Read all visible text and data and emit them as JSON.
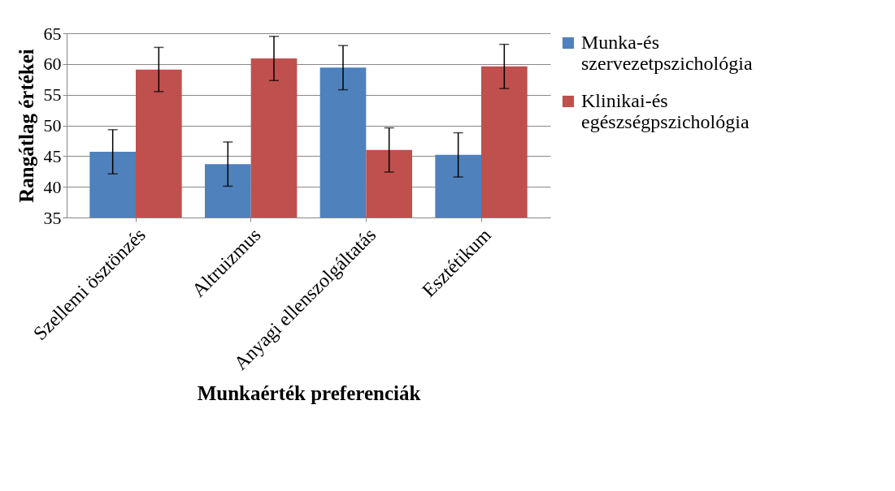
{
  "chart_data": {
    "type": "bar",
    "xlabel": "Munkaérték preferenciák",
    "ylabel": "Rangátlag értékei",
    "categories": [
      "Szellemi ösztönzés",
      "Altruizmus",
      "Anyagi ellenszolgáltatás",
      "Esztétikum"
    ],
    "series": [
      {
        "name": "Munka-és szervezetpszichológia",
        "color": "#4f81bd",
        "values": [
          45.7,
          43.7,
          59.4,
          45.2
        ],
        "errors": [
          3.6,
          3.6,
          3.6,
          3.6
        ]
      },
      {
        "name": "Klinikai-és egészségpszichológia",
        "color": "#c0504d",
        "values": [
          59.1,
          60.9,
          46.0,
          59.6
        ],
        "errors": [
          3.6,
          3.6,
          3.6,
          3.6
        ]
      }
    ],
    "ylim": [
      35,
      65
    ],
    "yticks": [
      35,
      40,
      45,
      50,
      55,
      60,
      65
    ],
    "grid": "y",
    "legend": "right"
  }
}
